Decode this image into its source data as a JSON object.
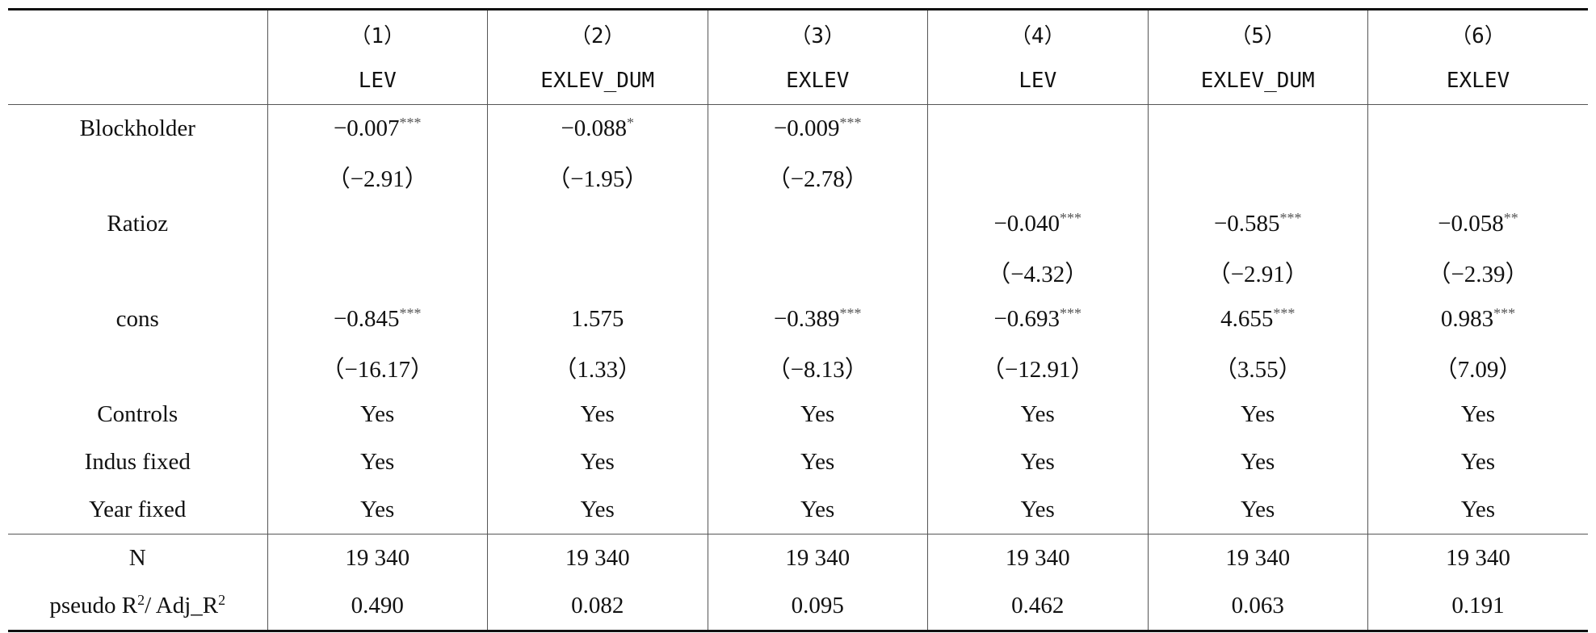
{
  "table": {
    "columns": [
      {
        "num": "（1）",
        "dep": "LEV"
      },
      {
        "num": "（2）",
        "dep": "EXLEV_DUM"
      },
      {
        "num": "（3）",
        "dep": "EXLEV"
      },
      {
        "num": "（4）",
        "dep": "LEV"
      },
      {
        "num": "（5）",
        "dep": "EXLEV_DUM"
      },
      {
        "num": "（6）",
        "dep": "EXLEV"
      }
    ],
    "body": [
      {
        "label": "Blockholder",
        "cells": [
          {
            "text": "−0.007",
            "stars": "***"
          },
          {
            "text": "−0.088",
            "stars": "*"
          },
          {
            "text": "−0.009",
            "stars": "***"
          },
          null,
          null,
          null
        ]
      },
      {
        "cells": [
          {
            "text": "（−2.91）"
          },
          {
            "text": "（−1.95）"
          },
          {
            "text": "（−2.78）"
          },
          null,
          null,
          null
        ]
      },
      {
        "label": "Ratioz",
        "cells": [
          null,
          null,
          null,
          {
            "text": "−0.040",
            "stars": "***"
          },
          {
            "text": "−0.585",
            "stars": "***"
          },
          {
            "text": "−0.058",
            "stars": "**"
          }
        ]
      },
      {
        "cells": [
          null,
          null,
          null,
          {
            "text": "（−4.32）"
          },
          {
            "text": "（−2.91）"
          },
          {
            "text": "（−2.39）"
          }
        ]
      },
      {
        "label": "cons",
        "cells": [
          {
            "text": "−0.845",
            "stars": "***"
          },
          {
            "text": "1.575"
          },
          {
            "text": "−0.389",
            "stars": "***"
          },
          {
            "text": "−0.693",
            "stars": "***"
          },
          {
            "text": "4.655",
            "stars": "***"
          },
          {
            "text": "0.983",
            "stars": "***"
          }
        ]
      },
      {
        "cells": [
          {
            "text": "（−16.17）"
          },
          {
            "text": "（1.33）"
          },
          {
            "text": "（−8.13）"
          },
          {
            "text": "（−12.91）"
          },
          {
            "text": "（3.55）"
          },
          {
            "text": "（7.09）"
          }
        ]
      },
      {
        "label": "Controls",
        "cells": [
          {
            "text": "Yes"
          },
          {
            "text": "Yes"
          },
          {
            "text": "Yes"
          },
          {
            "text": "Yes"
          },
          {
            "text": "Yes"
          },
          {
            "text": "Yes"
          }
        ]
      },
      {
        "label": "Indus fixed",
        "cells": [
          {
            "text": "Yes"
          },
          {
            "text": "Yes"
          },
          {
            "text": "Yes"
          },
          {
            "text": "Yes"
          },
          {
            "text": "Yes"
          },
          {
            "text": "Yes"
          }
        ]
      },
      {
        "label": "Year fixed",
        "cells": [
          {
            "text": "Yes"
          },
          {
            "text": "Yes"
          },
          {
            "text": "Yes"
          },
          {
            "text": "Yes"
          },
          {
            "text": "Yes"
          },
          {
            "text": "Yes"
          }
        ]
      }
    ],
    "footer": [
      {
        "label": "N",
        "cells": [
          {
            "text": "19 340"
          },
          {
            "text": "19 340"
          },
          {
            "text": "19 340"
          },
          {
            "text": "19 340"
          },
          {
            "text": "19 340"
          },
          {
            "text": "19 340"
          }
        ]
      },
      {
        "label_parts": [
          {
            "text": "pseudo R"
          },
          {
            "sup": "2"
          },
          {
            "text": "/ Adj_R"
          },
          {
            "sup": "2"
          }
        ],
        "cells": [
          {
            "text": "0.490"
          },
          {
            "text": "0.082"
          },
          {
            "text": "0.095"
          },
          {
            "text": "0.462"
          },
          {
            "text": "0.063"
          },
          {
            "text": "0.191"
          }
        ]
      }
    ]
  }
}
